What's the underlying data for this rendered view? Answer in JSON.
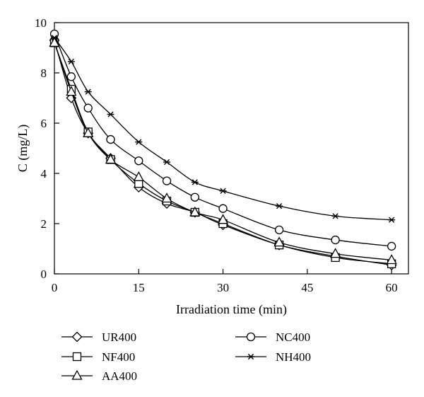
{
  "chart_data": {
    "type": "line",
    "xlabel": "Irradiation time (min)",
    "ylabel": "C (mg/L)",
    "xlim": [
      0,
      63
    ],
    "ylim": [
      0,
      10
    ],
    "xticks": [
      0,
      15,
      30,
      45,
      60
    ],
    "yticks": [
      0,
      2,
      4,
      6,
      8,
      10
    ],
    "legend_position": "bottom",
    "series": [
      {
        "name": "UR400",
        "marker": "diamond",
        "x": [
          0,
          3,
          6,
          10,
          15,
          20,
          25,
          30,
          40,
          50,
          60
        ],
        "y": [
          9.3,
          7.0,
          5.6,
          4.6,
          3.45,
          2.8,
          2.45,
          1.95,
          1.15,
          0.7,
          0.35
        ]
      },
      {
        "name": "NF400",
        "marker": "square",
        "x": [
          0,
          3,
          6,
          10,
          15,
          20,
          25,
          30,
          40,
          50,
          60
        ],
        "y": [
          9.2,
          7.35,
          5.65,
          4.55,
          3.6,
          2.9,
          2.45,
          2.0,
          1.15,
          0.65,
          0.4
        ]
      },
      {
        "name": "AA400",
        "marker": "triangle",
        "x": [
          0,
          3,
          6,
          10,
          15,
          20,
          25,
          30,
          40,
          50,
          60
        ],
        "y": [
          9.2,
          7.25,
          5.6,
          4.55,
          3.85,
          3.0,
          2.45,
          2.15,
          1.25,
          0.8,
          0.55
        ]
      },
      {
        "name": "NC400",
        "marker": "circle",
        "x": [
          0,
          3,
          6,
          10,
          15,
          20,
          25,
          30,
          40,
          50,
          60
        ],
        "y": [
          9.55,
          7.85,
          6.6,
          5.35,
          4.5,
          3.7,
          3.05,
          2.6,
          1.75,
          1.35,
          1.1
        ]
      },
      {
        "name": "NH400",
        "marker": "star",
        "x": [
          0,
          3,
          6,
          10,
          15,
          20,
          25,
          30,
          40,
          50,
          60
        ],
        "y": [
          9.4,
          8.45,
          7.25,
          6.35,
          5.25,
          4.45,
          3.65,
          3.3,
          2.7,
          2.3,
          2.15
        ]
      }
    ]
  }
}
